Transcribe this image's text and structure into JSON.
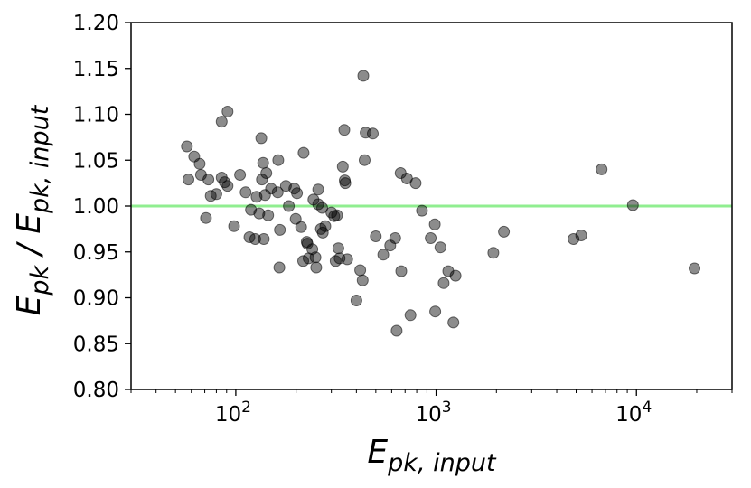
{
  "chart_data": {
    "type": "scatter",
    "xlabel": {
      "base": "E",
      "sub": "pk, input"
    },
    "ylabel": {
      "base": "E",
      "sub1": "pk",
      "sep": " / ",
      "base2": "E",
      "sub2": "pk, input"
    },
    "xscale": "log",
    "xlim": [
      30,
      30000
    ],
    "ylim": [
      0.8,
      1.2
    ],
    "x_ticks": [
      {
        "value": 100,
        "base": "10",
        "exp": "2"
      },
      {
        "value": 1000,
        "base": "10",
        "exp": "3"
      },
      {
        "value": 10000,
        "base": "10",
        "exp": "4"
      }
    ],
    "y_ticks": [
      {
        "value": 0.8,
        "label": "0.80"
      },
      {
        "value": 0.85,
        "label": "0.85"
      },
      {
        "value": 0.9,
        "label": "0.90"
      },
      {
        "value": 0.95,
        "label": "0.95"
      },
      {
        "value": 1.0,
        "label": "1.00"
      },
      {
        "value": 1.05,
        "label": "1.05"
      },
      {
        "value": 1.1,
        "label": "1.10"
      },
      {
        "value": 1.15,
        "label": "1.15"
      },
      {
        "value": 1.2,
        "label": "1.20"
      }
    ],
    "reference_line": {
      "y": 1.0,
      "color": "#90ee90"
    },
    "marker_color": "#000000",
    "marker_opacity": 0.45,
    "grid": false,
    "points": [
      {
        "x": 57,
        "y": 1.065
      },
      {
        "x": 58,
        "y": 1.029
      },
      {
        "x": 62,
        "y": 1.054
      },
      {
        "x": 66,
        "y": 1.046
      },
      {
        "x": 67,
        "y": 1.034
      },
      {
        "x": 71,
        "y": 0.987
      },
      {
        "x": 73,
        "y": 1.029
      },
      {
        "x": 75,
        "y": 1.011
      },
      {
        "x": 80,
        "y": 1.013
      },
      {
        "x": 85,
        "y": 1.031
      },
      {
        "x": 85,
        "y": 1.092
      },
      {
        "x": 88,
        "y": 1.026
      },
      {
        "x": 91,
        "y": 1.103
      },
      {
        "x": 91,
        "y": 1.022
      },
      {
        "x": 98,
        "y": 0.978
      },
      {
        "x": 105,
        "y": 1.034
      },
      {
        "x": 112,
        "y": 1.015
      },
      {
        "x": 117,
        "y": 0.966
      },
      {
        "x": 119,
        "y": 0.996
      },
      {
        "x": 125,
        "y": 0.964
      },
      {
        "x": 127,
        "y": 1.01
      },
      {
        "x": 131,
        "y": 0.992
      },
      {
        "x": 134,
        "y": 1.074
      },
      {
        "x": 135,
        "y": 1.029
      },
      {
        "x": 137,
        "y": 1.047
      },
      {
        "x": 138,
        "y": 0.964
      },
      {
        "x": 140,
        "y": 1.012
      },
      {
        "x": 142,
        "y": 1.036
      },
      {
        "x": 145,
        "y": 0.99
      },
      {
        "x": 150,
        "y": 1.019
      },
      {
        "x": 162,
        "y": 1.015
      },
      {
        "x": 163,
        "y": 1.05
      },
      {
        "x": 165,
        "y": 0.933
      },
      {
        "x": 166,
        "y": 0.974
      },
      {
        "x": 178,
        "y": 1.022
      },
      {
        "x": 184,
        "y": 1.0
      },
      {
        "x": 196,
        "y": 1.019
      },
      {
        "x": 199,
        "y": 0.986
      },
      {
        "x": 202,
        "y": 1.014
      },
      {
        "x": 212,
        "y": 0.977
      },
      {
        "x": 217,
        "y": 0.94
      },
      {
        "x": 218,
        "y": 1.058
      },
      {
        "x": 226,
        "y": 0.961
      },
      {
        "x": 228,
        "y": 0.959
      },
      {
        "x": 231,
        "y": 0.943
      },
      {
        "x": 241,
        "y": 0.953
      },
      {
        "x": 244,
        "y": 1.007
      },
      {
        "x": 250,
        "y": 0.944
      },
      {
        "x": 252,
        "y": 0.933
      },
      {
        "x": 258,
        "y": 1.002
      },
      {
        "x": 258,
        "y": 1.018
      },
      {
        "x": 266,
        "y": 0.975
      },
      {
        "x": 270,
        "y": 0.998
      },
      {
        "x": 272,
        "y": 0.971
      },
      {
        "x": 280,
        "y": 0.978
      },
      {
        "x": 300,
        "y": 0.993
      },
      {
        "x": 310,
        "y": 0.989
      },
      {
        "x": 315,
        "y": 0.94
      },
      {
        "x": 320,
        "y": 0.99
      },
      {
        "x": 325,
        "y": 0.954
      },
      {
        "x": 330,
        "y": 0.943
      },
      {
        "x": 342,
        "y": 1.043
      },
      {
        "x": 348,
        "y": 1.083
      },
      {
        "x": 350,
        "y": 1.028
      },
      {
        "x": 352,
        "y": 1.025
      },
      {
        "x": 360,
        "y": 0.942
      },
      {
        "x": 400,
        "y": 0.897
      },
      {
        "x": 418,
        "y": 0.93
      },
      {
        "x": 430,
        "y": 0.919
      },
      {
        "x": 433,
        "y": 1.142
      },
      {
        "x": 440,
        "y": 1.05
      },
      {
        "x": 445,
        "y": 1.08
      },
      {
        "x": 483,
        "y": 1.079
      },
      {
        "x": 500,
        "y": 0.967
      },
      {
        "x": 545,
        "y": 0.947
      },
      {
        "x": 590,
        "y": 0.957
      },
      {
        "x": 625,
        "y": 0.965
      },
      {
        "x": 635,
        "y": 0.864
      },
      {
        "x": 665,
        "y": 1.036
      },
      {
        "x": 670,
        "y": 0.929
      },
      {
        "x": 715,
        "y": 1.03
      },
      {
        "x": 745,
        "y": 0.881
      },
      {
        "x": 790,
        "y": 1.025
      },
      {
        "x": 850,
        "y": 0.995
      },
      {
        "x": 940,
        "y": 0.965
      },
      {
        "x": 985,
        "y": 0.98
      },
      {
        "x": 990,
        "y": 0.885
      },
      {
        "x": 1050,
        "y": 0.955
      },
      {
        "x": 1090,
        "y": 0.916
      },
      {
        "x": 1150,
        "y": 0.929
      },
      {
        "x": 1220,
        "y": 0.873
      },
      {
        "x": 1250,
        "y": 0.924
      },
      {
        "x": 1930,
        "y": 0.949
      },
      {
        "x": 2180,
        "y": 0.972
      },
      {
        "x": 4850,
        "y": 0.964
      },
      {
        "x": 5300,
        "y": 0.968
      },
      {
        "x": 6700,
        "y": 1.04
      },
      {
        "x": 9600,
        "y": 1.001
      },
      {
        "x": 19500,
        "y": 0.932
      }
    ]
  }
}
